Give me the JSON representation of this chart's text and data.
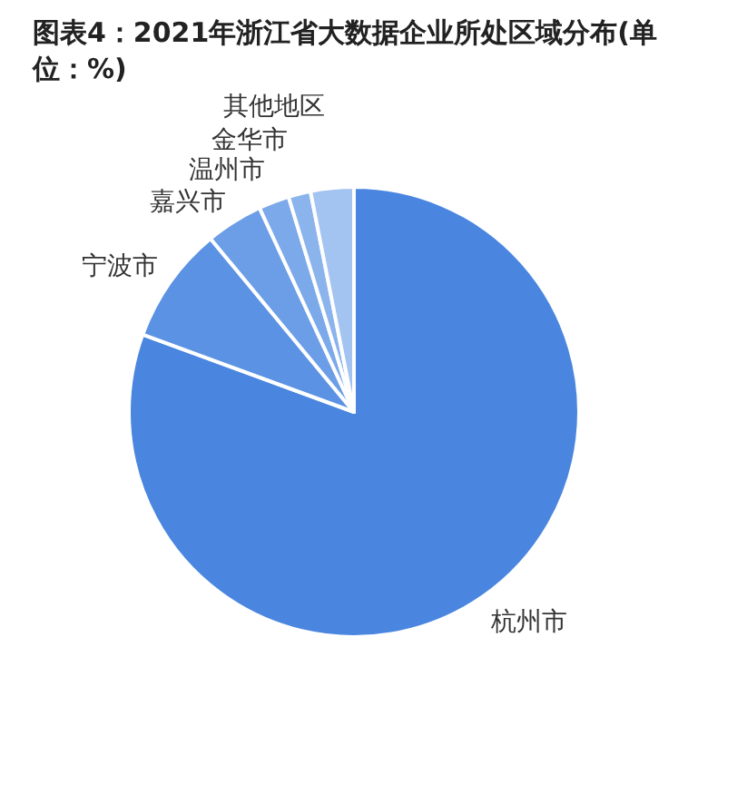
{
  "chart_data": {
    "type": "pie",
    "title": "图表4：2021年浙江省大数据企业所处区域分布(单位：%)",
    "categories": [
      "杭州市",
      "宁波市",
      "嘉兴市",
      "温州市",
      "金华市",
      "其他地区"
    ],
    "values": [
      80.6,
      8.4,
      4.1,
      2.2,
      1.6,
      3.1
    ],
    "colors": [
      "#4a86e0",
      "#5b92e4",
      "#6b9ee7",
      "#7ba9ea",
      "#8bb4ed",
      "#a3c3f1"
    ]
  }
}
